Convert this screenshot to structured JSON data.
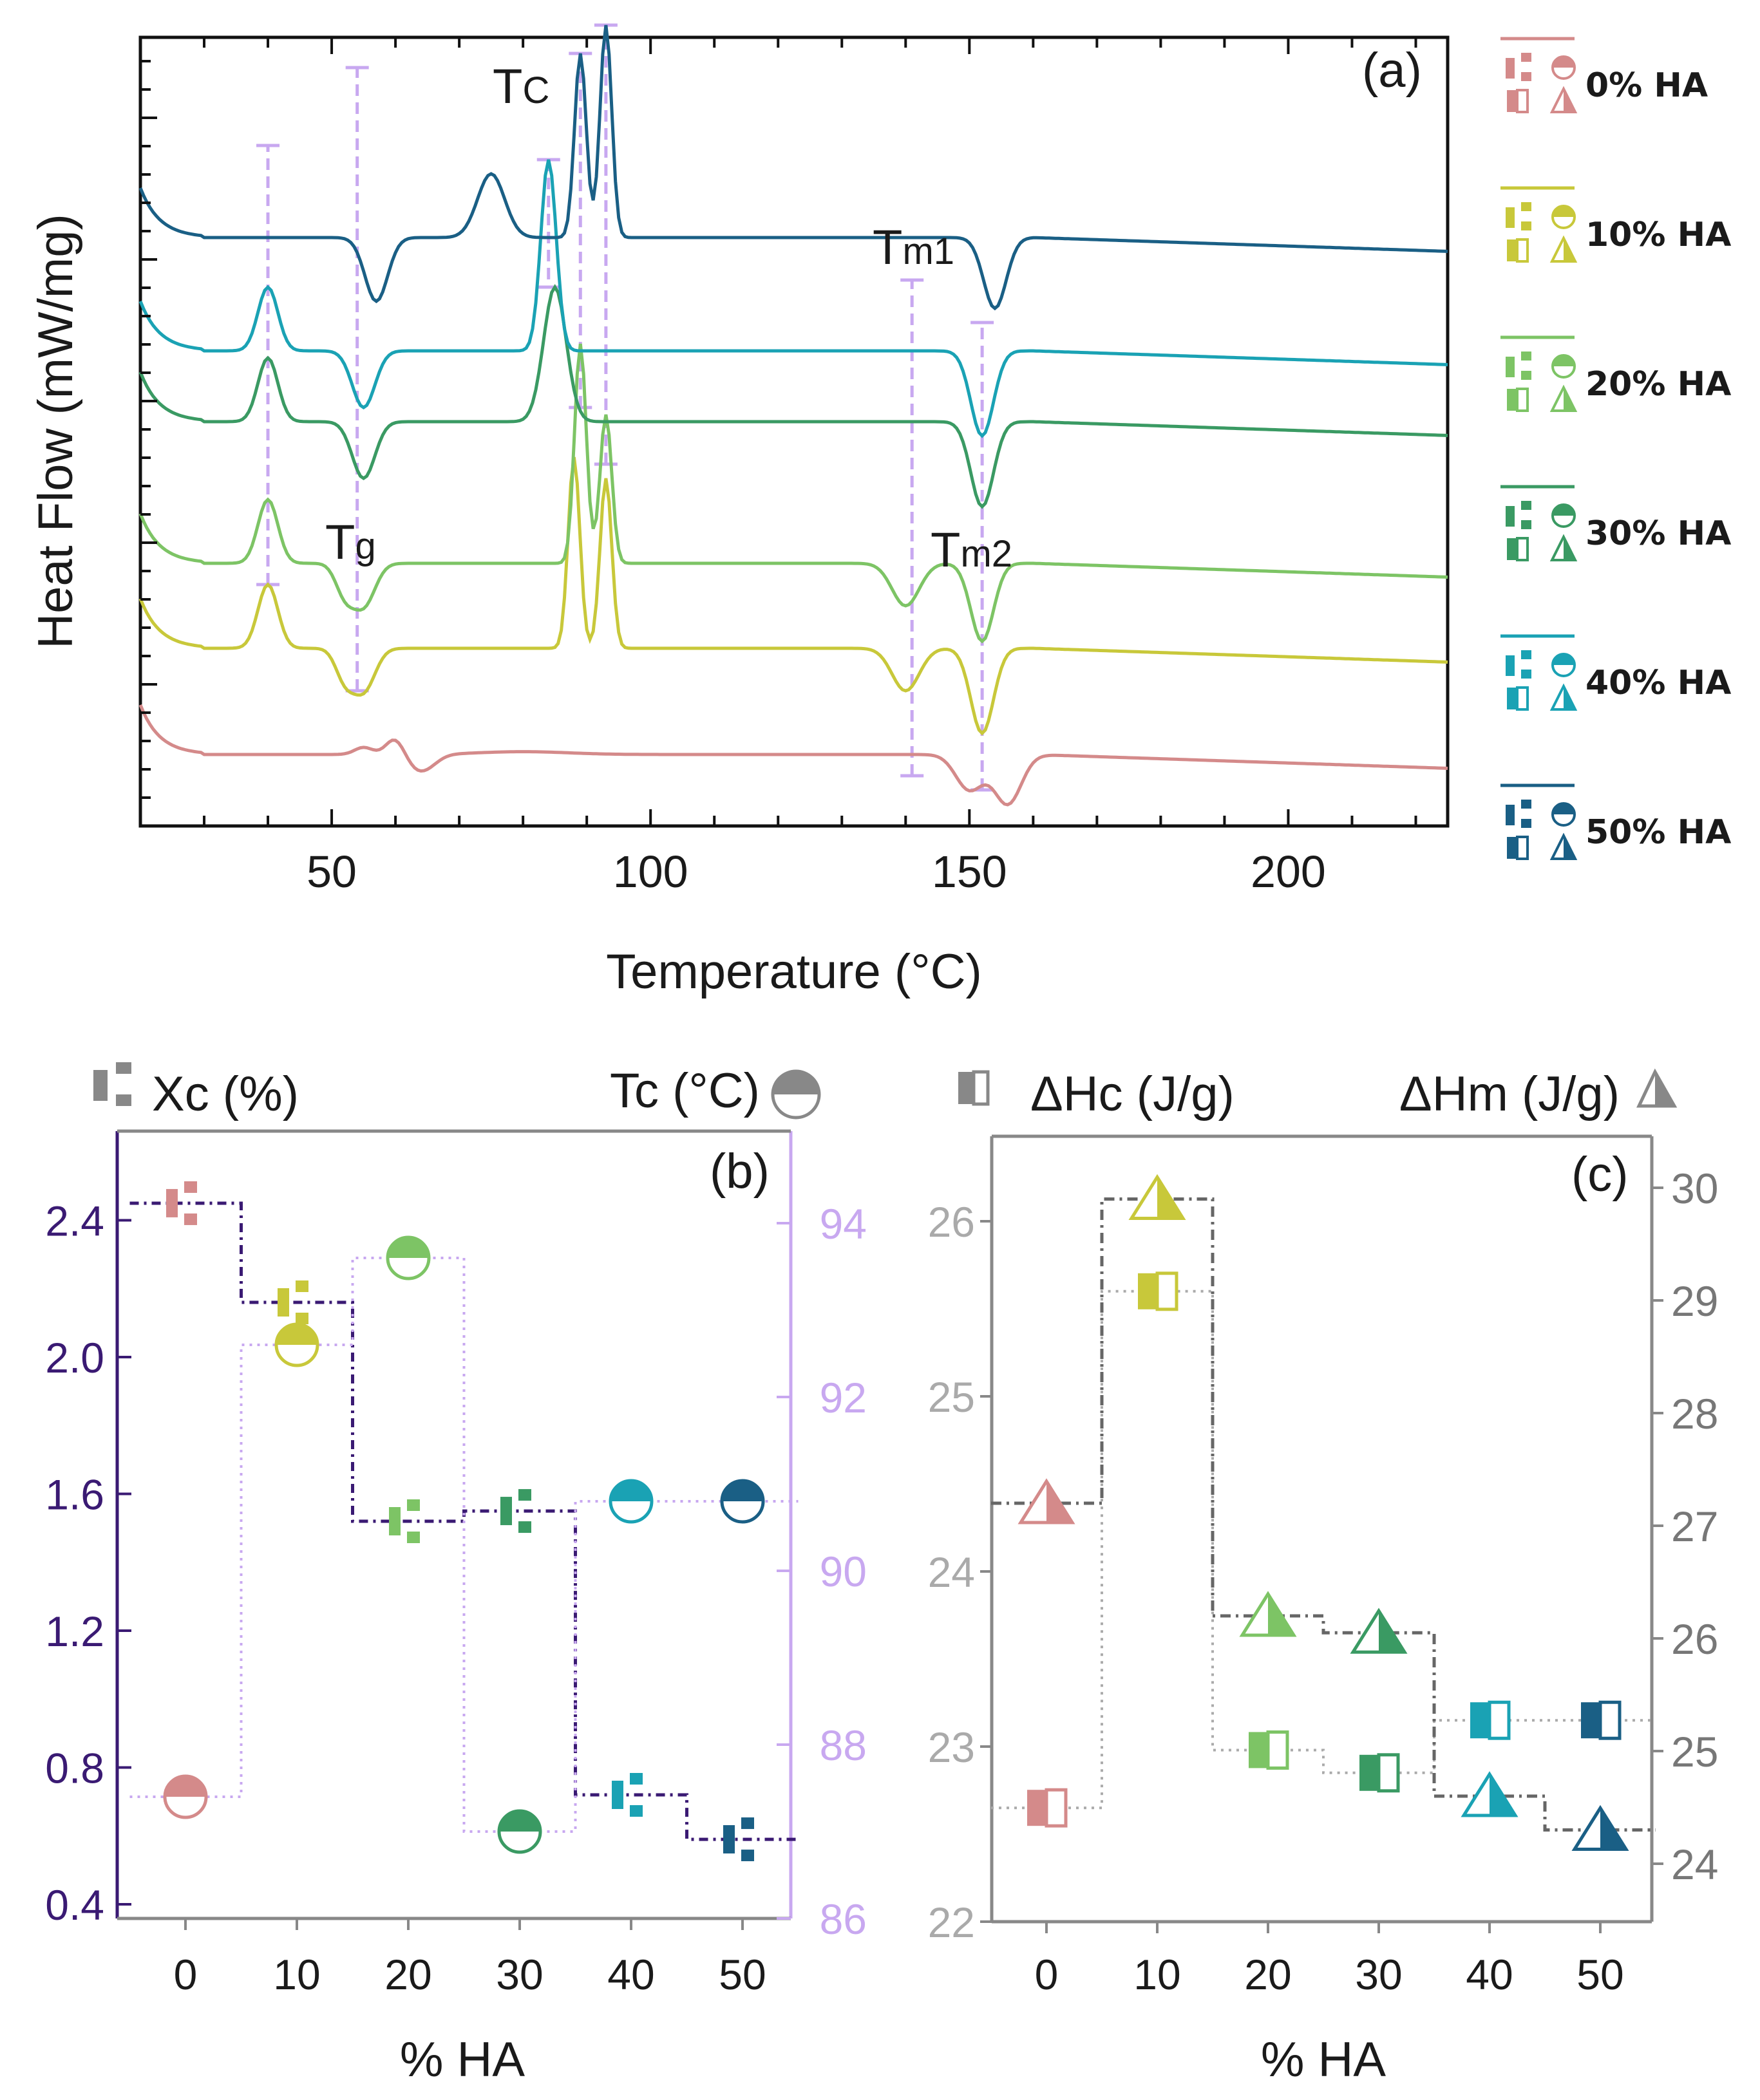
{
  "colors": {
    "HA0": "#d48a8a",
    "HA10": "#c8c83a",
    "HA20": "#7dc465",
    "HA30": "#3a9a63",
    "HA40": "#1aa2b4",
    "HA50": "#1a5f85",
    "xc_axis": "#3a1a73",
    "tc_axis": "#c8a8f0",
    "dh_axis": "#888888"
  },
  "legend": [
    {
      "label": "0% HA",
      "color_key": "HA0"
    },
    {
      "label": "10% HA",
      "color_key": "HA10"
    },
    {
      "label": "20% HA",
      "color_key": "HA20"
    },
    {
      "label": "30% HA",
      "color_key": "HA30"
    },
    {
      "label": "40% HA",
      "color_key": "HA40"
    },
    {
      "label": "50% HA",
      "color_key": "HA50"
    }
  ],
  "chart_data": [
    {
      "id": "a",
      "type": "line",
      "panel_label": "(a)",
      "xlabel": "Temperature (°C)",
      "ylabel": "Heat Flow (mW/mg)",
      "xlim": [
        20,
        225
      ],
      "xticks": [
        50,
        100,
        150,
        200
      ],
      "annotations": [
        "Tc",
        "Tg",
        "Tm1",
        "Tm2"
      ],
      "series": [
        {
          "name": "0% HA",
          "color_key": "HA0",
          "baseline": 0.15,
          "features": [
            [
              40,
              0.0,
              4
            ],
            [
              55,
              0.05,
              2
            ],
            [
              60,
              0.12,
              2
            ],
            [
              64,
              -0.12,
              3
            ],
            [
              80,
              0.02,
              10
            ],
            [
              150,
              -0.25,
              3
            ],
            [
              156,
              -0.35,
              3
            ]
          ]
        },
        {
          "name": "10% HA",
          "color_key": "HA10",
          "baseline": 0.9,
          "features": [
            [
              40,
              0.45,
              2.2
            ],
            [
              52,
              -0.2,
              2
            ],
            [
              55,
              -0.3,
              2.5
            ],
            [
              88,
              1.35,
              1.3
            ],
            [
              93,
              1.2,
              1.3
            ],
            [
              140,
              -0.3,
              3
            ],
            [
              152,
              -0.6,
              2.5
            ]
          ]
        },
        {
          "name": "20% HA",
          "color_key": "HA20",
          "baseline": 1.5,
          "features": [
            [
              40,
              0.45,
              2.2
            ],
            [
              52,
              -0.2,
              2
            ],
            [
              55,
              -0.3,
              2.5
            ],
            [
              89,
              1.55,
              1.3
            ],
            [
              93,
              1.05,
              1.3
            ],
            [
              140,
              -0.3,
              3
            ],
            [
              152,
              -0.55,
              2.5
            ]
          ]
        },
        {
          "name": "30% HA",
          "color_key": "HA30",
          "baseline": 2.5,
          "features": [
            [
              40,
              0.45,
              2.2
            ],
            [
              55,
              -0.4,
              2.5
            ],
            [
              85,
              0.95,
              2.5
            ],
            [
              152,
              -0.6,
              2.5
            ]
          ]
        },
        {
          "name": "40% HA",
          "color_key": "HA40",
          "baseline": 3.0,
          "features": [
            [
              40,
              0.45,
              2.2
            ],
            [
              55,
              -0.4,
              2.5
            ],
            [
              84,
              1.35,
              1.7
            ],
            [
              152,
              -0.6,
              2.5
            ]
          ]
        },
        {
          "name": "50% HA",
          "color_key": "HA50",
          "baseline": 3.8,
          "features": [
            [
              57,
              -0.45,
              2.5
            ],
            [
              75,
              0.45,
              3
            ],
            [
              89,
              1.3,
              1.3
            ],
            [
              93,
              1.5,
              1.3
            ],
            [
              154,
              -0.5,
              2.5
            ]
          ]
        }
      ]
    },
    {
      "id": "b",
      "type": "scatter",
      "panel_label": "(b)",
      "xlabel": "% HA",
      "ylabel_left": "Xc (%)",
      "ylabel_right": "Tc (°C)",
      "x": [
        0,
        10,
        20,
        30,
        40,
        50
      ],
      "xticks": [
        "0",
        "10",
        "20",
        "30",
        "40",
        "50"
      ],
      "ylim_left": [
        0.4,
        2.6
      ],
      "yticks_left": [
        "0.4",
        "0.8",
        "1.2",
        "1.6",
        "2.0",
        "2.4"
      ],
      "ylim_right": [
        86,
        95
      ],
      "yticks_right": [
        "86",
        "88",
        "90",
        "92",
        "94"
      ],
      "series": [
        {
          "name": "Xc (%)",
          "axis": "left",
          "values": [
            2.45,
            2.16,
            1.52,
            1.55,
            0.72,
            0.59
          ]
        },
        {
          "name": "Tc (°C)",
          "axis": "right",
          "values": [
            87.4,
            92.6,
            93.6,
            87.0,
            90.8,
            90.8
          ]
        }
      ]
    },
    {
      "id": "c",
      "type": "scatter",
      "panel_label": "(c)",
      "xlabel": "% HA",
      "ylabel_left": "ΔHc (J/g)",
      "ylabel_right": "ΔHm (J/g)",
      "x": [
        0,
        10,
        20,
        30,
        40,
        50
      ],
      "xticks": [
        "0",
        "10",
        "20",
        "30",
        "40",
        "50"
      ],
      "ylim_left": [
        22,
        26.4
      ],
      "yticks_left": [
        "22",
        "23",
        "24",
        "25",
        "26"
      ],
      "ylim_right": [
        23.5,
        30.4
      ],
      "yticks_right": [
        "24",
        "25",
        "26",
        "27",
        "28",
        "29",
        "30"
      ],
      "series": [
        {
          "name": "ΔHc (J/g)",
          "axis": "left",
          "values": [
            22.65,
            25.6,
            22.98,
            22.85,
            23.15,
            23.15
          ]
        },
        {
          "name": "ΔHm (J/g)",
          "axis": "right",
          "values": [
            27.2,
            29.9,
            26.2,
            26.05,
            24.6,
            24.3
          ]
        }
      ]
    }
  ]
}
